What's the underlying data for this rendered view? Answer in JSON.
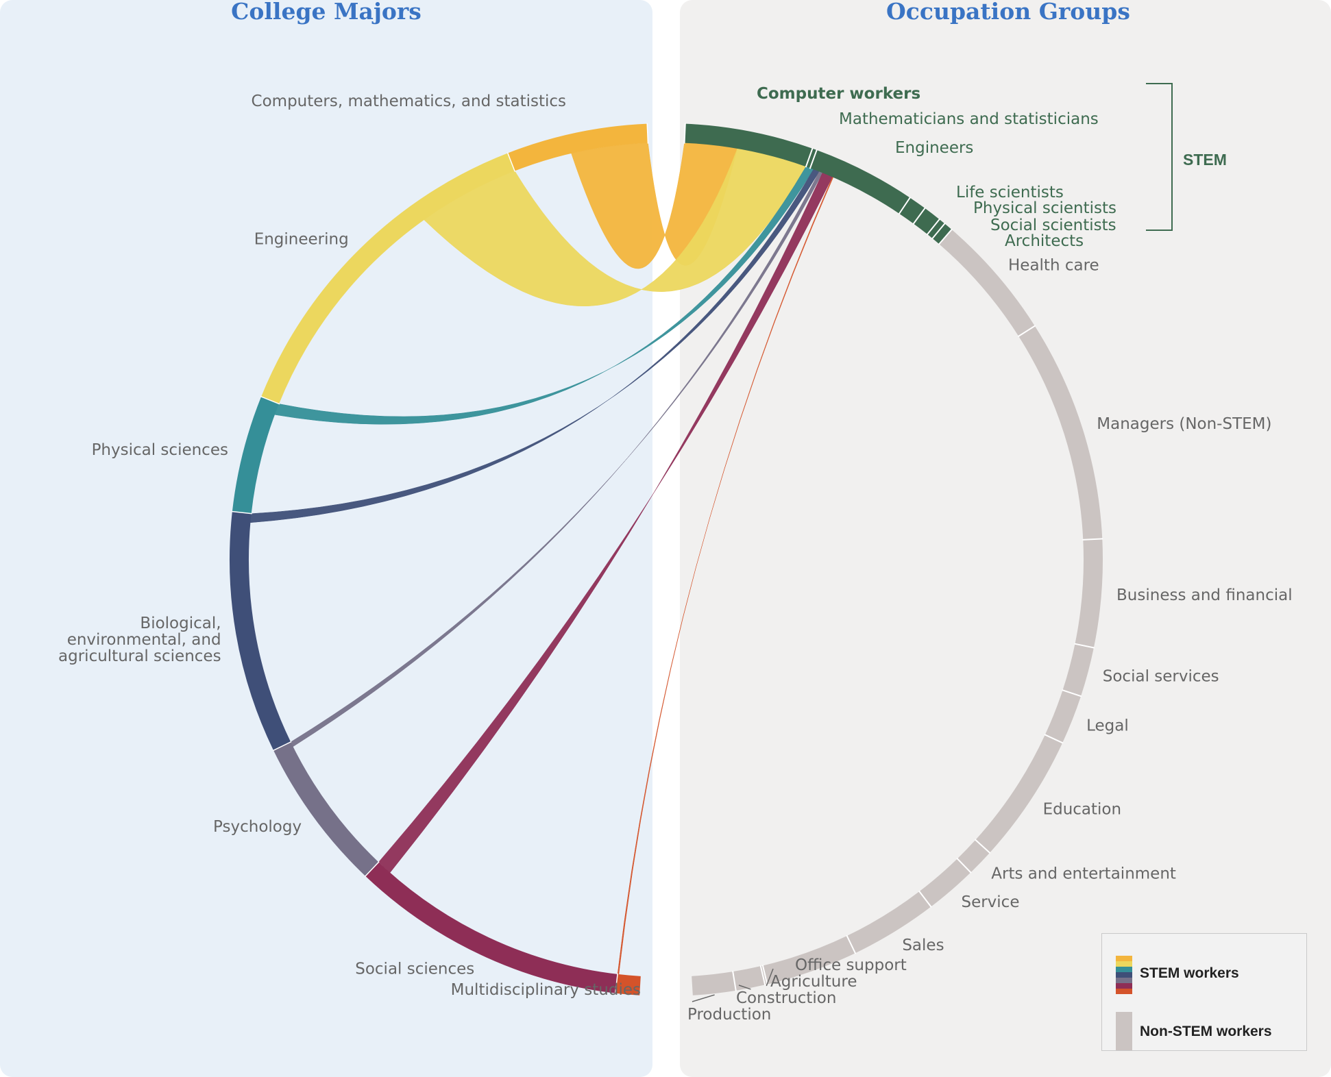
{
  "panels": {
    "left_title": "College Majors",
    "right_title": "Occupation Groups"
  },
  "stem_bracket_label": "STEM",
  "legend": {
    "stem_label": "STEM workers",
    "nonstem_label": "Non-STEM workers",
    "stem_colors": [
      "#f3b53d",
      "#ecd75e",
      "#358f98",
      "#3f4f78",
      "#767189",
      "#8e2e56",
      "#d4532a"
    ],
    "nonstem_color": "#cbc4c2"
  },
  "colors": {
    "left_bg": "#e8f0f8",
    "right_bg": "#f1f0ef",
    "title": "#3a74c4",
    "stem_occ": "#3e6b50",
    "nonstem_occ": "#cbc4c2",
    "label": "#666666"
  },
  "chart_data": {
    "type": "chord",
    "title": "",
    "majors": [
      {
        "name": "Computers, mathematics, and statistics",
        "share": 5.3,
        "color": "#f3b53d"
      },
      {
        "name": "Engineering",
        "share": 13.2,
        "color": "#ecd75e"
      },
      {
        "name": "Physical sciences",
        "share": 4.4,
        "color": "#358f98"
      },
      {
        "name": "Biological,\nenvironmental, and\nagricultural  sciences",
        "share": 9.1,
        "color": "#3f4f78"
      },
      {
        "name": "Psychology",
        "share": 5.8,
        "color": "#767189"
      },
      {
        "name": "Social sciences",
        "share": 10.4,
        "color": "#8e2e56"
      },
      {
        "name": "Multidisciplinary studies",
        "share": 0.9,
        "color": "#d4532a"
      }
    ],
    "occupations": [
      {
        "name": "Computer workers",
        "share": 5.7,
        "stem": true
      },
      {
        "name": "Mathematicians and statisticians",
        "share": 0.2,
        "stem": true
      },
      {
        "name": "Engineers",
        "share": 4.6,
        "stem": true
      },
      {
        "name": "Life scientists",
        "share": 0.8,
        "stem": true
      },
      {
        "name": "Physical scientists",
        "share": 0.8,
        "stem": true
      },
      {
        "name": "Social scientists",
        "share": 0.3,
        "stem": true
      },
      {
        "name": "Architects",
        "share": 0.4,
        "stem": true
      },
      {
        "name": "Health care",
        "share": 5.6,
        "stem": false
      },
      {
        "name": "Managers (Non-STEM)",
        "share": 9.9,
        "stem": false
      },
      {
        "name": "Business and financial",
        "share": 4.8,
        "stem": false
      },
      {
        "name": "Social services",
        "share": 2.2,
        "stem": false
      },
      {
        "name": "Legal",
        "share": 2.2,
        "stem": false
      },
      {
        "name": "Education",
        "share": 5.8,
        "stem": false
      },
      {
        "name": "Arts and entertainment",
        "share": 1.2,
        "stem": false
      },
      {
        "name": "Service",
        "share": 2.3,
        "stem": false
      },
      {
        "name": "Sales",
        "share": 3.9,
        "stem": false
      },
      {
        "name": "Office support",
        "share": 4.1,
        "stem": false
      },
      {
        "name": "Agriculture",
        "share": 0.1,
        "stem": false
      },
      {
        "name": "Construction",
        "share": 1.3,
        "stem": false
      },
      {
        "name": "Production",
        "share": 1.9,
        "stem": false
      }
    ],
    "flows": [
      {
        "major": "Computers, mathematics, and statistics",
        "to": "STEM occupations",
        "value": 3.0
      },
      {
        "major": "Engineering",
        "to": "STEM occupations",
        "value": 4.0
      },
      {
        "major": "Physical sciences",
        "to": "STEM occupations",
        "value": 0.45
      },
      {
        "major": "Biological,\nenvironmental, and\nagricultural  sciences",
        "to": "STEM occupations",
        "value": 0.35
      },
      {
        "major": "Psychology",
        "to": "STEM occupations",
        "value": 0.2
      },
      {
        "major": "Social sciences",
        "to": "STEM occupations",
        "value": 0.6
      },
      {
        "major": "Multidisciplinary studies",
        "to": "STEM occupations",
        "value": 0.05
      }
    ]
  }
}
